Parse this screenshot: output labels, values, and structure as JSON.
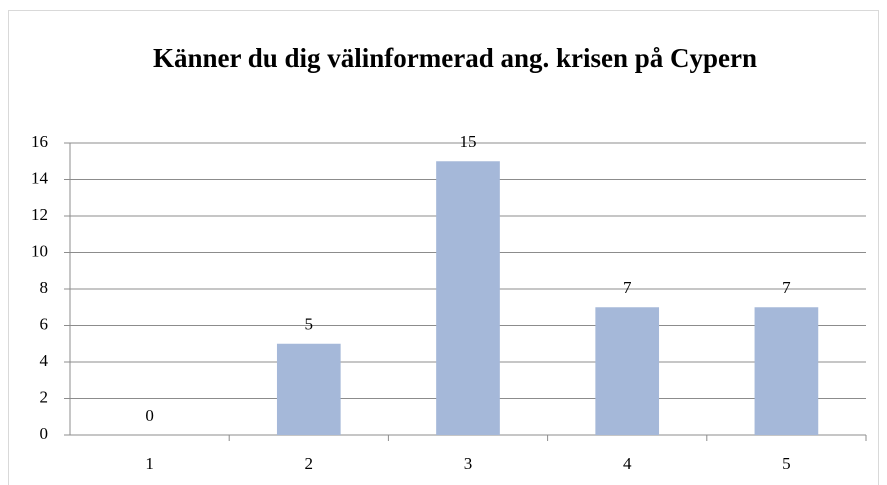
{
  "chart_data": {
    "type": "bar",
    "title": "Känner du dig välinformerad ang. krisen på Cypern",
    "categories": [
      "1",
      "2",
      "3",
      "4",
      "5"
    ],
    "values": [
      0,
      5,
      15,
      7,
      7
    ],
    "color": "#a5b8d9",
    "ylim": [
      0,
      16
    ],
    "yticks": [
      0,
      2,
      4,
      6,
      8,
      10,
      12,
      14,
      16
    ],
    "grid": true
  }
}
